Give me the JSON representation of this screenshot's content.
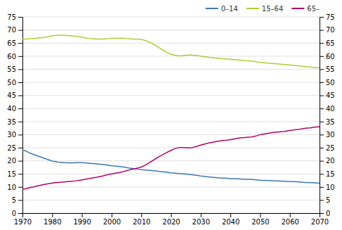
{
  "chart_data": {
    "type": "line",
    "x": [
      1970,
      1971,
      1972,
      1973,
      1974,
      1975,
      1976,
      1977,
      1978,
      1979,
      1980,
      1981,
      1982,
      1983,
      1984,
      1985,
      1986,
      1987,
      1988,
      1989,
      1990,
      1991,
      1992,
      1993,
      1994,
      1995,
      1996,
      1997,
      1998,
      1999,
      2000,
      2001,
      2002,
      2003,
      2004,
      2005,
      2006,
      2007,
      2008,
      2009,
      2010,
      2011,
      2012,
      2013,
      2014,
      2015,
      2016,
      2017,
      2018,
      2019,
      2020,
      2021,
      2022,
      2023,
      2024,
      2025,
      2026,
      2027,
      2028,
      2029,
      2030,
      2031,
      2032,
      2033,
      2034,
      2035,
      2036,
      2037,
      2038,
      2039,
      2040,
      2041,
      2042,
      2043,
      2044,
      2045,
      2046,
      2047,
      2048,
      2049,
      2050,
      2051,
      2052,
      2053,
      2054,
      2055,
      2056,
      2057,
      2058,
      2059,
      2060,
      2061,
      2062,
      2063,
      2064,
      2065,
      2066,
      2067,
      2068,
      2069,
      2070
    ],
    "series": [
      {
        "name": "0–14",
        "color": "#3c78b4",
        "values": [
          24.3,
          23.8,
          23.2,
          22.7,
          22.3,
          21.9,
          21.5,
          21.1,
          20.7,
          20.3,
          19.9,
          19.7,
          19.5,
          19.4,
          19.3,
          19.2,
          19.2,
          19.2,
          19.3,
          19.3,
          19.3,
          19.2,
          19.1,
          19.0,
          18.9,
          18.8,
          18.7,
          18.6,
          18.5,
          18.3,
          18.1,
          18.0,
          17.9,
          17.8,
          17.6,
          17.4,
          17.2,
          17.1,
          16.9,
          16.8,
          16.6,
          16.5,
          16.4,
          16.3,
          16.2,
          16.1,
          15.9,
          15.8,
          15.7,
          15.6,
          15.4,
          15.3,
          15.2,
          15.1,
          15.0,
          14.9,
          14.8,
          14.7,
          14.5,
          14.4,
          14.2,
          14.1,
          13.9,
          13.8,
          13.7,
          13.6,
          13.5,
          13.4,
          13.4,
          13.3,
          13.2,
          13.2,
          13.1,
          13.1,
          13.0,
          13.0,
          12.9,
          12.9,
          12.8,
          12.7,
          12.6,
          12.5,
          12.5,
          12.4,
          12.4,
          12.3,
          12.3,
          12.2,
          12.2,
          12.1,
          12.1,
          12.0,
          12.0,
          11.9,
          11.8,
          11.7,
          11.7,
          11.6,
          11.6,
          11.5,
          11.5
        ]
      },
      {
        "name": "15–64",
        "color": "#b5c932",
        "values": [
          66.5,
          66.5,
          66.6,
          66.7,
          66.8,
          66.9,
          67.0,
          67.1,
          67.3,
          67.5,
          67.8,
          67.9,
          68.0,
          68.0,
          68.0,
          67.9,
          67.8,
          67.7,
          67.6,
          67.4,
          67.2,
          67.0,
          66.8,
          66.7,
          66.6,
          66.5,
          66.5,
          66.5,
          66.6,
          66.7,
          66.8,
          66.8,
          66.9,
          66.9,
          66.8,
          66.7,
          66.6,
          66.5,
          66.5,
          66.5,
          66.4,
          66.1,
          65.7,
          65.2,
          64.6,
          64.0,
          63.2,
          62.5,
          61.8,
          61.2,
          60.7,
          60.4,
          60.2,
          60.1,
          60.2,
          60.3,
          60.4,
          60.4,
          60.3,
          60.2,
          60.0,
          59.8,
          59.7,
          59.5,
          59.4,
          59.3,
          59.2,
          59.1,
          59.0,
          58.9,
          58.8,
          58.7,
          58.6,
          58.5,
          58.4,
          58.3,
          58.2,
          58.1,
          58.0,
          57.8,
          57.6,
          57.5,
          57.4,
          57.3,
          57.2,
          57.1,
          57.0,
          56.9,
          56.8,
          56.7,
          56.6,
          56.5,
          56.4,
          56.3,
          56.1,
          56.0,
          55.9,
          55.8,
          55.7,
          55.6,
          55.5
        ]
      },
      {
        "name": "65–",
        "color": "#b4006e",
        "values": [
          9.1,
          9.3,
          9.6,
          9.9,
          10.1,
          10.4,
          10.6,
          10.9,
          11.1,
          11.3,
          11.5,
          11.6,
          11.7,
          11.8,
          11.9,
          12.0,
          12.1,
          12.2,
          12.4,
          12.5,
          12.7,
          12.9,
          13.1,
          13.3,
          13.5,
          13.7,
          14.0,
          14.2,
          14.5,
          14.8,
          15.0,
          15.2,
          15.4,
          15.6,
          15.9,
          16.2,
          16.5,
          16.8,
          17.0,
          17.3,
          17.6,
          18.1,
          18.8,
          19.5,
          20.2,
          20.9,
          21.6,
          22.2,
          22.8,
          23.4,
          24.0,
          24.5,
          24.9,
          25.1,
          25.1,
          25.0,
          24.9,
          25.0,
          25.3,
          25.6,
          26.0,
          26.3,
          26.6,
          26.9,
          27.1,
          27.3,
          27.5,
          27.7,
          27.8,
          27.9,
          28.1,
          28.3,
          28.5,
          28.7,
          28.8,
          28.9,
          29.0,
          29.1,
          29.3,
          29.6,
          30.0,
          30.2,
          30.4,
          30.6,
          30.8,
          30.9,
          31.0,
          31.1,
          31.2,
          31.4,
          31.6,
          31.7,
          31.9,
          32.0,
          32.2,
          32.4,
          32.5,
          32.6,
          32.8,
          32.9,
          33.0
        ]
      }
    ],
    "xlim": [
      1970,
      2070
    ],
    "xticks": [
      1970,
      1980,
      1990,
      2000,
      2010,
      2020,
      2030,
      2040,
      2050,
      2060,
      2070
    ],
    "ylim": [
      0,
      75
    ],
    "yticks": [
      0,
      5,
      10,
      15,
      20,
      25,
      30,
      35,
      40,
      45,
      50,
      55,
      60,
      65,
      70,
      75
    ],
    "y2lim": [
      0,
      75
    ],
    "y2ticks": [
      0,
      5,
      10,
      15,
      20,
      25,
      30,
      35,
      40,
      45,
      50,
      55,
      60,
      65,
      70,
      75
    ],
    "grid": true,
    "legend": "upper right"
  }
}
